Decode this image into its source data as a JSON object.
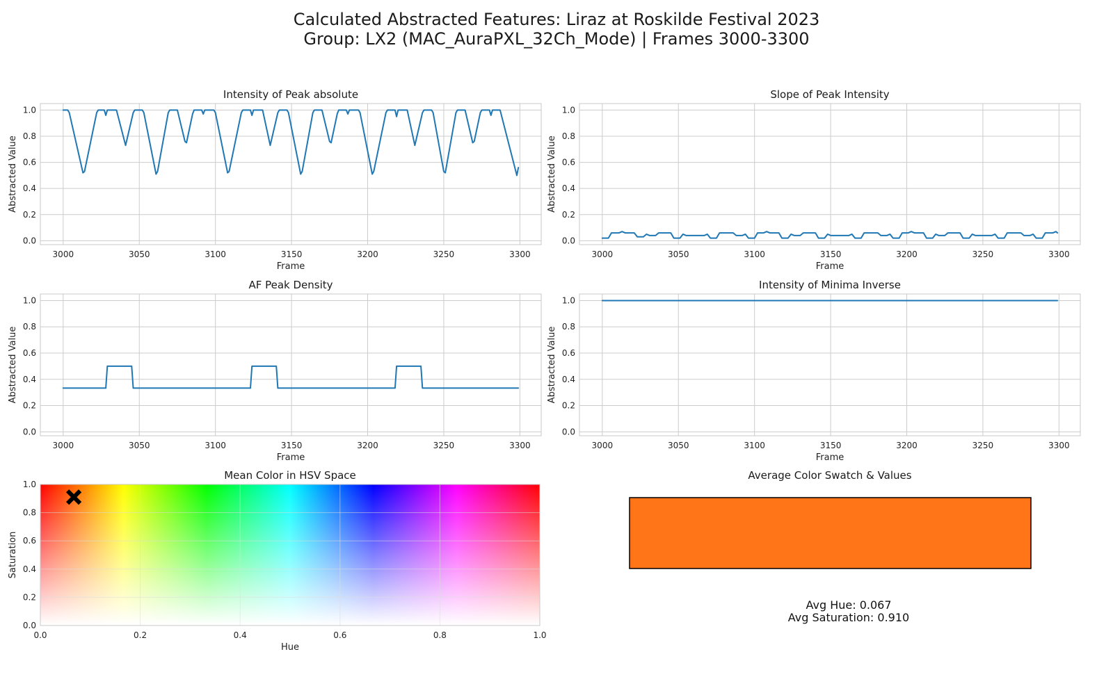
{
  "figure": {
    "title_line1": "Calculated Abstracted Features: Liraz at Roskilde Festival 2023",
    "title_line2": "Group: LX2 (MAC_AuraPXL_32Ch_Mode) | Frames 3000-3300"
  },
  "colors": {
    "line": "#1f77b4",
    "grid": "#cccccc",
    "axes_edge": "#c8c8c8",
    "marker": "#000000",
    "swatch_fill": "#ff7518"
  },
  "chart_data": [
    {
      "id": "intensity_peak_absolute",
      "type": "line",
      "title": "Intensity of Peak absolute",
      "xlabel": "Frame",
      "ylabel": "Abstracted Value",
      "xlim": [
        2985,
        3314
      ],
      "ylim": [
        -0.03,
        1.05
      ],
      "xticks": [
        3000,
        3050,
        3100,
        3150,
        3200,
        3250,
        3300
      ],
      "yticks": [
        0.0,
        0.2,
        0.4,
        0.6,
        0.8,
        1.0
      ],
      "grid": true,
      "series": [
        {
          "points": [
            [
              3000,
              1.0
            ],
            [
              3003,
              1.0
            ],
            [
              3004,
              0.98
            ],
            [
              3013,
              0.52
            ],
            [
              3014,
              0.53
            ],
            [
              3022,
              0.98
            ],
            [
              3023,
              1.0
            ],
            [
              3027,
              1.0
            ],
            [
              3028,
              0.96
            ],
            [
              3029,
              1.0
            ],
            [
              3035,
              1.0
            ],
            [
              3041,
              0.73
            ],
            [
              3046,
              0.98
            ],
            [
              3047,
              1.0
            ],
            [
              3052,
              1.0
            ],
            [
              3053,
              0.98
            ],
            [
              3061,
              0.51
            ],
            [
              3062,
              0.53
            ],
            [
              3069,
              0.98
            ],
            [
              3070,
              1.0
            ],
            [
              3075,
              1.0
            ],
            [
              3080,
              0.76
            ],
            [
              3081,
              0.75
            ],
            [
              3085,
              0.97
            ],
            [
              3086,
              1.0
            ],
            [
              3091,
              1.0
            ],
            [
              3092,
              0.97
            ],
            [
              3093,
              1.0
            ],
            [
              3099,
              1.0
            ],
            [
              3100,
              0.98
            ],
            [
              3108,
              0.52
            ],
            [
              3109,
              0.53
            ],
            [
              3117,
              0.98
            ],
            [
              3118,
              1.0
            ],
            [
              3123,
              1.0
            ],
            [
              3124,
              0.96
            ],
            [
              3125,
              1.0
            ],
            [
              3131,
              1.0
            ],
            [
              3136,
              0.73
            ],
            [
              3141,
              0.98
            ],
            [
              3142,
              1.0
            ],
            [
              3147,
              1.0
            ],
            [
              3148,
              0.98
            ],
            [
              3156,
              0.51
            ],
            [
              3157,
              0.53
            ],
            [
              3164,
              0.98
            ],
            [
              3165,
              1.0
            ],
            [
              3170,
              1.0
            ],
            [
              3175,
              0.76
            ],
            [
              3176,
              0.75
            ],
            [
              3180,
              0.97
            ],
            [
              3181,
              1.0
            ],
            [
              3186,
              1.0
            ],
            [
              3187,
              0.97
            ],
            [
              3188,
              1.0
            ],
            [
              3194,
              1.0
            ],
            [
              3195,
              0.98
            ],
            [
              3203,
              0.51
            ],
            [
              3204,
              0.53
            ],
            [
              3212,
              0.98
            ],
            [
              3213,
              1.0
            ],
            [
              3218,
              1.0
            ],
            [
              3219,
              0.95
            ],
            [
              3220,
              1.0
            ],
            [
              3226,
              1.0
            ],
            [
              3231,
              0.73
            ],
            [
              3236,
              0.98
            ],
            [
              3237,
              1.0
            ],
            [
              3242,
              1.0
            ],
            [
              3243,
              0.98
            ],
            [
              3250,
              0.53
            ],
            [
              3251,
              0.52
            ],
            [
              3258,
              0.98
            ],
            [
              3259,
              1.0
            ],
            [
              3264,
              1.0
            ],
            [
              3269,
              0.75
            ],
            [
              3270,
              0.76
            ],
            [
              3274,
              0.98
            ],
            [
              3275,
              1.0
            ],
            [
              3280,
              1.0
            ],
            [
              3281,
              0.96
            ],
            [
              3282,
              1.0
            ],
            [
              3287,
              1.0
            ],
            [
              3298,
              0.5
            ],
            [
              3299,
              0.56
            ]
          ]
        }
      ]
    },
    {
      "id": "slope_peak_intensity",
      "type": "line",
      "title": "Slope of Peak Intensity",
      "xlabel": "Frame",
      "ylabel": "Abstracted Value",
      "xlim": [
        2985,
        3314
      ],
      "ylim": [
        -0.03,
        1.05
      ],
      "xticks": [
        3000,
        3050,
        3100,
        3150,
        3200,
        3250,
        3300
      ],
      "yticks": [
        0.0,
        0.2,
        0.4,
        0.6,
        0.8,
        1.0
      ],
      "grid": true,
      "series": [
        {
          "points": [
            [
              3000,
              0.02
            ],
            [
              3004,
              0.02
            ],
            [
              3006,
              0.06
            ],
            [
              3011,
              0.06
            ],
            [
              3013,
              0.07
            ],
            [
              3015,
              0.06
            ],
            [
              3021,
              0.06
            ],
            [
              3023,
              0.03
            ],
            [
              3027,
              0.03
            ],
            [
              3029,
              0.05
            ],
            [
              3031,
              0.04
            ],
            [
              3035,
              0.04
            ],
            [
              3037,
              0.06
            ],
            [
              3045,
              0.06
            ],
            [
              3047,
              0.02
            ],
            [
              3051,
              0.02
            ],
            [
              3053,
              0.05
            ],
            [
              3055,
              0.04
            ],
            [
              3067,
              0.04
            ],
            [
              3069,
              0.05
            ],
            [
              3071,
              0.02
            ],
            [
              3075,
              0.02
            ],
            [
              3077,
              0.06
            ],
            [
              3086,
              0.06
            ],
            [
              3088,
              0.04
            ],
            [
              3092,
              0.04
            ],
            [
              3094,
              0.05
            ],
            [
              3096,
              0.02
            ],
            [
              3100,
              0.02
            ],
            [
              3102,
              0.06
            ],
            [
              3106,
              0.06
            ],
            [
              3108,
              0.07
            ],
            [
              3110,
              0.06
            ],
            [
              3116,
              0.06
            ],
            [
              3118,
              0.02
            ],
            [
              3122,
              0.02
            ],
            [
              3124,
              0.05
            ],
            [
              3126,
              0.04
            ],
            [
              3130,
              0.04
            ],
            [
              3132,
              0.06
            ],
            [
              3140,
              0.06
            ],
            [
              3142,
              0.02
            ],
            [
              3146,
              0.02
            ],
            [
              3148,
              0.05
            ],
            [
              3150,
              0.04
            ],
            [
              3162,
              0.04
            ],
            [
              3164,
              0.05
            ],
            [
              3166,
              0.02
            ],
            [
              3170,
              0.02
            ],
            [
              3172,
              0.06
            ],
            [
              3181,
              0.06
            ],
            [
              3183,
              0.04
            ],
            [
              3187,
              0.04
            ],
            [
              3189,
              0.05
            ],
            [
              3191,
              0.02
            ],
            [
              3195,
              0.02
            ],
            [
              3197,
              0.06
            ],
            [
              3201,
              0.06
            ],
            [
              3203,
              0.07
            ],
            [
              3205,
              0.06
            ],
            [
              3211,
              0.06
            ],
            [
              3213,
              0.02
            ],
            [
              3217,
              0.02
            ],
            [
              3219,
              0.05
            ],
            [
              3221,
              0.04
            ],
            [
              3225,
              0.04
            ],
            [
              3227,
              0.06
            ],
            [
              3235,
              0.06
            ],
            [
              3237,
              0.02
            ],
            [
              3241,
              0.02
            ],
            [
              3243,
              0.05
            ],
            [
              3245,
              0.04
            ],
            [
              3256,
              0.04
            ],
            [
              3258,
              0.05
            ],
            [
              3260,
              0.02
            ],
            [
              3264,
              0.02
            ],
            [
              3266,
              0.06
            ],
            [
              3275,
              0.06
            ],
            [
              3277,
              0.04
            ],
            [
              3281,
              0.04
            ],
            [
              3283,
              0.05
            ],
            [
              3285,
              0.02
            ],
            [
              3289,
              0.02
            ],
            [
              3291,
              0.06
            ],
            [
              3296,
              0.06
            ],
            [
              3298,
              0.07
            ],
            [
              3299,
              0.06
            ]
          ]
        }
      ]
    },
    {
      "id": "af_peak_density",
      "type": "line",
      "title": "AF Peak Density",
      "xlabel": "Frame",
      "ylabel": "Abstracted Value",
      "xlim": [
        2985,
        3314
      ],
      "ylim": [
        -0.03,
        1.05
      ],
      "xticks": [
        3000,
        3050,
        3100,
        3150,
        3200,
        3250,
        3300
      ],
      "yticks": [
        0.0,
        0.2,
        0.4,
        0.6,
        0.8,
        1.0
      ],
      "grid": true,
      "series": [
        {
          "points": [
            [
              3000,
              0.333
            ],
            [
              3028,
              0.333
            ],
            [
              3029,
              0.5
            ],
            [
              3045,
              0.5
            ],
            [
              3046,
              0.333
            ],
            [
              3123,
              0.333
            ],
            [
              3124,
              0.5
            ],
            [
              3140,
              0.5
            ],
            [
              3141,
              0.333
            ],
            [
              3218,
              0.333
            ],
            [
              3219,
              0.5
            ],
            [
              3235,
              0.5
            ],
            [
              3236,
              0.333
            ],
            [
              3299,
              0.333
            ]
          ]
        }
      ]
    },
    {
      "id": "intensity_minima_inverse",
      "type": "line",
      "title": "Intensity of Minima Inverse",
      "xlabel": "Frame",
      "ylabel": "Abstracted Value",
      "xlim": [
        2985,
        3314
      ],
      "ylim": [
        -0.03,
        1.05
      ],
      "xticks": [
        3000,
        3050,
        3100,
        3150,
        3200,
        3250,
        3300
      ],
      "yticks": [
        0.0,
        0.2,
        0.4,
        0.6,
        0.8,
        1.0
      ],
      "grid": true,
      "series": [
        {
          "points": [
            [
              3000,
              1.0
            ],
            [
              3299,
              1.0
            ]
          ]
        }
      ]
    },
    {
      "id": "mean_color_hsv",
      "type": "scatter",
      "title": "Mean Color in HSV Space",
      "xlabel": "Hue",
      "ylabel": "Saturation",
      "xlim": [
        0.0,
        1.0
      ],
      "ylim": [
        0.0,
        1.0
      ],
      "xticks": [
        0.0,
        0.2,
        0.4,
        0.6,
        0.8,
        1.0
      ],
      "yticks": [
        0.0,
        0.2,
        0.4,
        0.6,
        0.8,
        1.0
      ],
      "grid": true,
      "background": "hsv_hue_saturation_map",
      "points": [
        {
          "x": 0.067,
          "y": 0.91,
          "marker": "X"
        }
      ]
    },
    {
      "id": "average_color_swatch",
      "type": "swatch",
      "title": "Average Color Swatch & Values",
      "avg_hue_label": "Avg Hue: 0.067",
      "avg_saturation_label": "Avg Saturation: 0.910"
    }
  ]
}
